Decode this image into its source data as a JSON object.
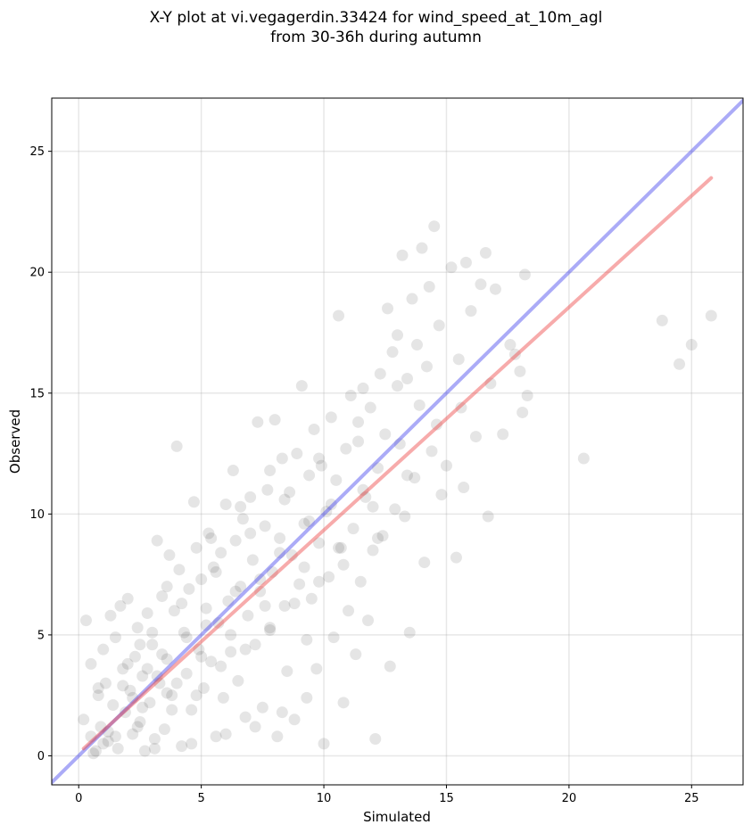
{
  "title": {
    "line1": "X-Y plot at vi.vegagerdin.33424 for wind_speed_at_10m_agl",
    "line2": "from 30-36h during autumn"
  },
  "chart_data": {
    "type": "scatter",
    "xlabel": "Simulated",
    "ylabel": "Observed",
    "xlim": [
      -1.1,
      27.1
    ],
    "ylim": [
      -1.2,
      27.2
    ],
    "xticks": [
      0,
      5,
      10,
      15,
      20,
      25
    ],
    "yticks": [
      0,
      5,
      10,
      15,
      20,
      25
    ],
    "grid": true,
    "colors": {
      "points": "#000000",
      "identity_line": "#4444ee",
      "fit_line": "#ee4444"
    },
    "series": [
      {
        "type": "scatter",
        "points": [
          [
            0.2,
            1.5
          ],
          [
            0.3,
            5.6
          ],
          [
            0.5,
            3.8
          ],
          [
            0.6,
            0.1
          ],
          [
            0.7,
            0.2
          ],
          [
            0.8,
            2.5
          ],
          [
            0.9,
            1.2
          ],
          [
            1.0,
            4.4
          ],
          [
            1.1,
            3.0
          ],
          [
            1.2,
            0.6
          ],
          [
            1.3,
            5.8
          ],
          [
            1.4,
            2.1
          ],
          [
            1.5,
            4.9
          ],
          [
            1.6,
            0.3
          ],
          [
            1.7,
            6.2
          ],
          [
            1.8,
            3.6
          ],
          [
            1.9,
            1.8
          ],
          [
            2.0,
            6.5
          ],
          [
            2.1,
            2.7
          ],
          [
            2.2,
            0.9
          ],
          [
            2.3,
            4.1
          ],
          [
            2.4,
            5.3
          ],
          [
            2.5,
            1.4
          ],
          [
            2.6,
            3.3
          ],
          [
            2.7,
            0.2
          ],
          [
            2.8,
            5.9
          ],
          [
            2.9,
            2.2
          ],
          [
            3.0,
            4.6
          ],
          [
            3.1,
            0.7
          ],
          [
            3.2,
            8.9
          ],
          [
            3.3,
            3.0
          ],
          [
            3.4,
            6.6
          ],
          [
            3.5,
            1.1
          ],
          [
            3.6,
            4.0
          ],
          [
            3.7,
            8.3
          ],
          [
            3.8,
            2.5
          ],
          [
            3.9,
            6.0
          ],
          [
            4.0,
            12.8
          ],
          [
            4.1,
            7.7
          ],
          [
            4.2,
            0.4
          ],
          [
            4.3,
            5.1
          ],
          [
            4.4,
            3.4
          ],
          [
            4.5,
            6.9
          ],
          [
            4.6,
            1.9
          ],
          [
            4.7,
            10.5
          ],
          [
            4.8,
            8.6
          ],
          [
            4.9,
            4.4
          ],
          [
            5.0,
            7.3
          ],
          [
            5.1,
            2.8
          ],
          [
            5.2,
            6.1
          ],
          [
            5.3,
            9.2
          ],
          [
            5.4,
            3.9
          ],
          [
            5.5,
            7.8
          ],
          [
            5.6,
            0.8
          ],
          [
            5.7,
            5.5
          ],
          [
            5.8,
            8.4
          ],
          [
            5.9,
            2.4
          ],
          [
            6.0,
            10.4
          ],
          [
            6.1,
            6.4
          ],
          [
            6.2,
            4.3
          ],
          [
            6.3,
            11.8
          ],
          [
            6.4,
            8.9
          ],
          [
            6.5,
            3.1
          ],
          [
            6.6,
            7.0
          ],
          [
            6.7,
            9.8
          ],
          [
            6.8,
            1.6
          ],
          [
            6.9,
            5.8
          ],
          [
            7.0,
            10.7
          ],
          [
            7.1,
            8.1
          ],
          [
            7.2,
            4.6
          ],
          [
            7.3,
            13.8
          ],
          [
            7.4,
            6.8
          ],
          [
            7.5,
            2.0
          ],
          [
            7.6,
            9.5
          ],
          [
            7.7,
            11.0
          ],
          [
            7.8,
            5.2
          ],
          [
            7.9,
            7.6
          ],
          [
            8.0,
            13.9
          ],
          [
            8.1,
            0.8
          ],
          [
            8.2,
            9.0
          ],
          [
            8.3,
            12.3
          ],
          [
            8.4,
            6.2
          ],
          [
            8.5,
            3.5
          ],
          [
            8.6,
            10.9
          ],
          [
            8.7,
            8.3
          ],
          [
            8.8,
            1.5
          ],
          [
            8.9,
            12.5
          ],
          [
            9.0,
            7.1
          ],
          [
            9.1,
            15.3
          ],
          [
            9.2,
            9.6
          ],
          [
            9.3,
            4.8
          ],
          [
            9.4,
            11.6
          ],
          [
            9.5,
            6.5
          ],
          [
            9.6,
            13.5
          ],
          [
            9.7,
            3.6
          ],
          [
            9.8,
            8.8
          ],
          [
            9.9,
            12.0
          ],
          [
            10.0,
            0.5
          ],
          [
            10.1,
            10.1
          ],
          [
            10.2,
            7.4
          ],
          [
            10.3,
            14.0
          ],
          [
            10.4,
            4.9
          ],
          [
            10.5,
            11.4
          ],
          [
            10.6,
            18.2
          ],
          [
            10.7,
            8.6
          ],
          [
            10.8,
            2.2
          ],
          [
            10.9,
            12.7
          ],
          [
            11.0,
            6.0
          ],
          [
            11.1,
            14.9
          ],
          [
            11.2,
            9.4
          ],
          [
            11.3,
            4.2
          ],
          [
            11.4,
            13.0
          ],
          [
            11.5,
            7.2
          ],
          [
            11.6,
            15.2
          ],
          [
            11.7,
            10.7
          ],
          [
            11.8,
            5.6
          ],
          [
            11.9,
            14.4
          ],
          [
            12.0,
            8.5
          ],
          [
            12.1,
            0.7
          ],
          [
            12.2,
            11.9
          ],
          [
            12.3,
            15.8
          ],
          [
            12.4,
            9.1
          ],
          [
            12.5,
            13.3
          ],
          [
            12.6,
            18.5
          ],
          [
            12.7,
            3.7
          ],
          [
            12.8,
            16.7
          ],
          [
            12.9,
            10.2
          ],
          [
            13.0,
            17.4
          ],
          [
            13.1,
            12.9
          ],
          [
            13.2,
            20.7
          ],
          [
            13.3,
            9.9
          ],
          [
            13.4,
            15.6
          ],
          [
            13.5,
            5.1
          ],
          [
            13.6,
            18.9
          ],
          [
            13.7,
            11.5
          ],
          [
            13.8,
            17.0
          ],
          [
            13.9,
            14.5
          ],
          [
            14.0,
            21.0
          ],
          [
            14.1,
            8.0
          ],
          [
            14.2,
            16.1
          ],
          [
            14.3,
            19.4
          ],
          [
            14.4,
            12.6
          ],
          [
            14.5,
            21.9
          ],
          [
            14.6,
            13.7
          ],
          [
            14.7,
            17.8
          ],
          [
            14.8,
            10.8
          ],
          [
            15.0,
            12.0
          ],
          [
            15.2,
            20.2
          ],
          [
            15.4,
            8.2
          ],
          [
            15.5,
            16.4
          ],
          [
            15.6,
            14.4
          ],
          [
            15.7,
            11.1
          ],
          [
            15.8,
            20.4
          ],
          [
            16.0,
            18.4
          ],
          [
            16.2,
            13.2
          ],
          [
            16.4,
            19.5
          ],
          [
            16.6,
            20.8
          ],
          [
            16.7,
            9.9
          ],
          [
            16.8,
            15.4
          ],
          [
            17.0,
            19.3
          ],
          [
            17.3,
            13.3
          ],
          [
            17.6,
            17.0
          ],
          [
            17.8,
            16.6
          ],
          [
            18.0,
            15.9
          ],
          [
            18.1,
            14.2
          ],
          [
            18.2,
            19.9
          ],
          [
            18.3,
            14.9
          ],
          [
            20.6,
            12.3
          ],
          [
            23.8,
            18.0
          ],
          [
            24.5,
            16.2
          ],
          [
            25.0,
            17.0
          ],
          [
            25.8,
            18.2
          ],
          [
            1.2,
            1.0
          ],
          [
            2.2,
            2.4
          ],
          [
            3.2,
            3.3
          ],
          [
            2.6,
            2.0
          ],
          [
            1.8,
            2.9
          ],
          [
            3.6,
            2.6
          ],
          [
            4.4,
            4.9
          ],
          [
            5.2,
            5.4
          ],
          [
            0.5,
            0.8
          ],
          [
            1.0,
            0.5
          ],
          [
            2.8,
            3.6
          ],
          [
            3.4,
            4.2
          ],
          [
            6.4,
            6.8
          ],
          [
            7.4,
            7.3
          ],
          [
            8.2,
            8.4
          ],
          [
            9.4,
            9.7
          ],
          [
            10.3,
            10.4
          ],
          [
            11.6,
            11.0
          ],
          [
            4.0,
            3.0
          ],
          [
            5.0,
            4.1
          ],
          [
            6.2,
            5.0
          ],
          [
            7.6,
            6.2
          ],
          [
            9.2,
            7.8
          ],
          [
            10.6,
            8.6
          ],
          [
            12.0,
            10.3
          ],
          [
            13.4,
            11.6
          ],
          [
            2.0,
            3.8
          ],
          [
            3.0,
            5.1
          ],
          [
            4.2,
            6.3
          ],
          [
            5.6,
            7.6
          ],
          [
            7.0,
            9.2
          ],
          [
            8.4,
            10.6
          ],
          [
            9.8,
            12.3
          ],
          [
            11.4,
            13.8
          ],
          [
            13.0,
            15.3
          ],
          [
            0.8,
            2.8
          ],
          [
            1.5,
            0.8
          ],
          [
            2.4,
            1.2
          ],
          [
            3.8,
            1.9
          ],
          [
            4.8,
            2.5
          ],
          [
            5.8,
            3.7
          ],
          [
            6.8,
            4.4
          ],
          [
            7.8,
            5.3
          ],
          [
            8.8,
            6.3
          ],
          [
            9.8,
            7.2
          ],
          [
            10.8,
            7.9
          ],
          [
            12.2,
            9.0
          ],
          [
            3.1,
            0.3
          ],
          [
            4.6,
            0.5
          ],
          [
            6.0,
            0.9
          ],
          [
            7.2,
            1.2
          ],
          [
            8.3,
            1.8
          ],
          [
            9.3,
            2.4
          ],
          [
            2.5,
            4.6
          ],
          [
            3.6,
            7.0
          ],
          [
            5.4,
            9.0
          ],
          [
            6.6,
            10.3
          ],
          [
            7.8,
            11.8
          ]
        ]
      },
      {
        "type": "line",
        "name": "",
        "points": [
          [
            -1.1,
            -1.1
          ],
          [
            27.1,
            27.1
          ]
        ]
      },
      {
        "type": "line",
        "name": "",
        "points": [
          [
            0.2,
            0.3
          ],
          [
            25.8,
            23.9
          ]
        ]
      }
    ]
  }
}
